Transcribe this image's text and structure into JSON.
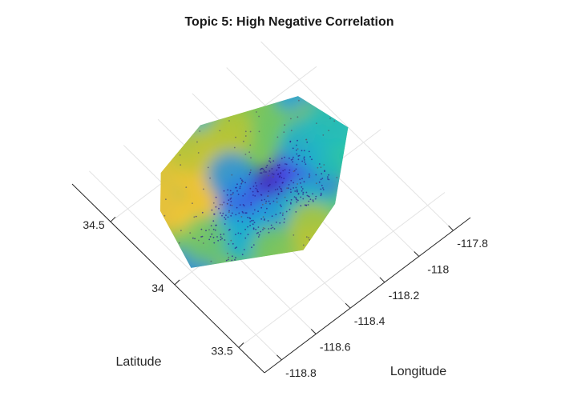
{
  "chart_data": {
    "type": "surface",
    "title": "Topic 5: High Negative Correlation",
    "view": "3-D view from above",
    "xlabel": "Longitude",
    "ylabel": "Latitude",
    "xlim": [
      -118.9,
      -117.7
    ],
    "ylim": [
      33.3,
      34.8
    ],
    "x_ticks": [
      -118.8,
      -118.6,
      -118.4,
      -118.2,
      -118,
      -117.8
    ],
    "x_tick_labels": [
      "-118.8",
      "-118.6",
      "-118.4",
      "-118.2",
      "-118",
      "-117.8"
    ],
    "y_ticks": [
      33.5,
      34,
      34.5
    ],
    "y_tick_labels": [
      "33.5",
      "34",
      "34.5"
    ],
    "grid": true,
    "colormap": "parula",
    "colors": [
      "#3e26a8",
      "#4746e8",
      "#1ca5df",
      "#22c4b2",
      "#a2c636",
      "#fec135",
      "#f9e21f"
    ],
    "hull": [
      [
        -118.36,
        33.72
      ],
      [
        -118.79,
        34.02
      ],
      [
        -118.7,
        34.38
      ],
      [
        -118.57,
        34.55
      ],
      [
        -118.28,
        34.63
      ],
      [
        -117.86,
        34.43
      ],
      [
        -117.8,
        34.12
      ],
      [
        -118.1,
        33.82
      ]
    ],
    "surface_points": [
      [
        -118.36,
        33.72,
        0.74
      ],
      [
        -118.79,
        34.02,
        0.28
      ],
      [
        -118.7,
        34.38,
        0.82
      ],
      [
        -118.57,
        34.55,
        0.8
      ],
      [
        -118.28,
        34.63,
        0.42
      ],
      [
        -117.86,
        34.43,
        0.32
      ],
      [
        -117.8,
        34.12,
        0.52
      ],
      [
        -118.1,
        33.82,
        0.55
      ],
      [
        -118.6,
        34.2,
        0.88
      ],
      [
        -118.45,
        34.4,
        0.85
      ],
      [
        -118.3,
        34.45,
        0.78
      ],
      [
        -118.4,
        34.55,
        0.72
      ],
      [
        -118.5,
        34.3,
        0.8
      ],
      [
        -118.2,
        34.5,
        0.7
      ],
      [
        -118.05,
        34.35,
        0.6
      ],
      [
        -118.3,
        34.12,
        0.05
      ],
      [
        -118.22,
        34.08,
        0.04
      ],
      [
        -118.35,
        34.05,
        0.1
      ],
      [
        -118.15,
        34.05,
        0.12
      ],
      [
        -118.4,
        34.15,
        0.15
      ],
      [
        -118.45,
        34.08,
        0.22
      ],
      [
        -118.1,
        34.12,
        0.16
      ],
      [
        -118.05,
        34.0,
        0.25
      ],
      [
        -118.55,
        34.05,
        0.35
      ],
      [
        -118.65,
        34.1,
        0.6
      ],
      [
        -118.5,
        33.95,
        0.4
      ],
      [
        -118.35,
        33.95,
        0.36
      ],
      [
        -118.2,
        33.92,
        0.45
      ],
      [
        -117.95,
        34.05,
        0.5
      ],
      [
        -117.9,
        34.25,
        0.62
      ],
      [
        -118.0,
        34.2,
        0.4
      ],
      [
        -118.45,
        33.82,
        0.62
      ],
      [
        -118.25,
        33.8,
        0.7
      ],
      [
        -117.85,
        34.2,
        0.45
      ],
      [
        -118.35,
        34.3,
        0.3
      ]
    ]
  }
}
